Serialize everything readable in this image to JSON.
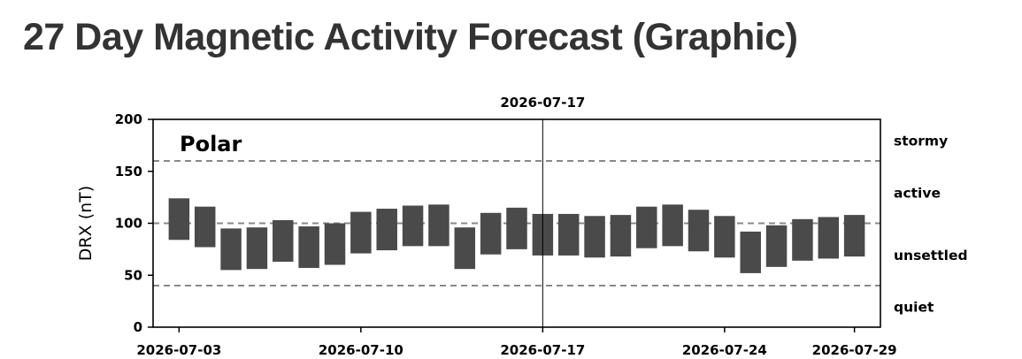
{
  "page": {
    "title": "27 Day Magnetic Activity Forecast (Graphic)"
  },
  "chart_data": {
    "type": "bar",
    "subtype": "floating-range",
    "panel_label": "Polar",
    "ylabel": "DRX (nT)",
    "xlabel": "",
    "ylim": [
      0,
      200
    ],
    "yticks": [
      0,
      50,
      100,
      150,
      200
    ],
    "xlim": [
      "2026-07-02",
      "2026-07-30"
    ],
    "xticks": [
      "2026-07-03",
      "2026-07-10",
      "2026-07-17",
      "2026-07-24",
      "2026-07-29"
    ],
    "current_date": "2026-07-17",
    "current_date_label": "2026-07-17",
    "thresholds": [
      40,
      100,
      160
    ],
    "zones": [
      {
        "label": "stormy",
        "y": 180
      },
      {
        "label": "active",
        "y": 130
      },
      {
        "label": "unsettled",
        "y": 70
      },
      {
        "label": "quiet",
        "y": 20
      }
    ],
    "grid": false,
    "bar_color": "#4a4a4a",
    "threshold_color": "#888888",
    "series": [
      {
        "dates": [
          "2026-07-03",
          "2026-07-04",
          "2026-07-05",
          "2026-07-06",
          "2026-07-07",
          "2026-07-08",
          "2026-07-09",
          "2026-07-10",
          "2026-07-11",
          "2026-07-12",
          "2026-07-13",
          "2026-07-14",
          "2026-07-15",
          "2026-07-16",
          "2026-07-17",
          "2026-07-18",
          "2026-07-19",
          "2026-07-20",
          "2026-07-21",
          "2026-07-22",
          "2026-07-23",
          "2026-07-24",
          "2026-07-25",
          "2026-07-26",
          "2026-07-27",
          "2026-07-28",
          "2026-07-29"
        ],
        "low": [
          84,
          77,
          55,
          56,
          63,
          57,
          60,
          71,
          74,
          78,
          78,
          56,
          70,
          75,
          69,
          69,
          67,
          68,
          76,
          78,
          73,
          67,
          52,
          58,
          64,
          66,
          68
        ],
        "high": [
          124,
          116,
          95,
          96,
          103,
          97,
          100,
          111,
          114,
          117,
          118,
          96,
          110,
          115,
          109,
          109,
          107,
          108,
          116,
          118,
          113,
          107,
          92,
          98,
          104,
          106,
          108
        ]
      }
    ]
  }
}
